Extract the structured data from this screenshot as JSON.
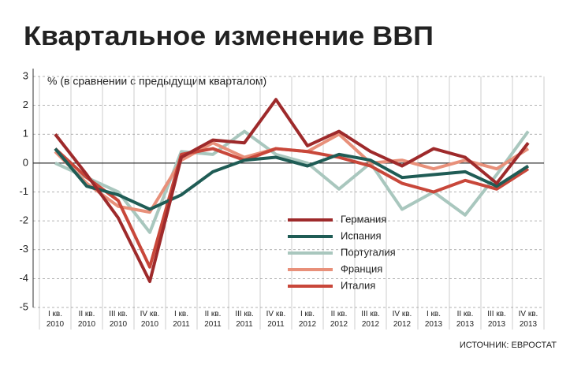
{
  "chart_data": {
    "type": "line",
    "title": "Квартальное изменение ВВП",
    "subtitle": "% (в сравнении с предыдущим кварталом)",
    "source": "ИСТОЧНИК: ЕВРОСТАТ",
    "categories": [
      [
        "I кв.",
        "2010"
      ],
      [
        "II кв.",
        "2010"
      ],
      [
        "III кв.",
        "2010"
      ],
      [
        "IV кв.",
        "2010"
      ],
      [
        "I кв.",
        "2011"
      ],
      [
        "II кв.",
        "2011"
      ],
      [
        "III кв.",
        "2011"
      ],
      [
        "IV кв.",
        "2011"
      ],
      [
        "I кв.",
        "2012"
      ],
      [
        "II кв.",
        "2012"
      ],
      [
        "III кв.",
        "2012"
      ],
      [
        "IV кв.",
        "2012"
      ],
      [
        "I кв.",
        "2013"
      ],
      [
        "II кв.",
        "2013"
      ],
      [
        "III кв.",
        "2013"
      ],
      [
        "IV кв.",
        "2013"
      ]
    ],
    "series": [
      {
        "name": "Германия",
        "color": "#9e2a2b",
        "values": [
          1.0,
          -0.4,
          -1.9,
          -4.1,
          0.2,
          0.8,
          0.7,
          2.2,
          0.6,
          1.1,
          0.4,
          -0.1,
          0.5,
          0.2,
          -0.7,
          0.7
        ]
      },
      {
        "name": "Испания",
        "color": "#1f5c55",
        "values": [
          0.5,
          -0.8,
          -1.1,
          -1.6,
          -1.1,
          -0.3,
          0.1,
          0.2,
          -0.1,
          0.3,
          0.1,
          -0.5,
          -0.4,
          -0.3,
          -0.8,
          -0.1
        ]
      },
      {
        "name": "Португалия",
        "color": "#a9c7be",
        "values": [
          0.0,
          -0.5,
          -1.0,
          -2.4,
          0.4,
          0.3,
          1.1,
          0.3,
          0.0,
          -0.9,
          0.0,
          -1.6,
          -1.0,
          -1.8,
          -0.4,
          1.1
        ]
      },
      {
        "name": "Франция",
        "color": "#e8907a",
        "values": [
          0.4,
          -0.7,
          -1.5,
          -1.7,
          0.1,
          0.7,
          0.2,
          0.5,
          0.4,
          1.0,
          0.0,
          0.1,
          -0.2,
          0.1,
          -0.2,
          0.5
        ]
      },
      {
        "name": "Италия",
        "color": "#c8473a",
        "values": [
          0.5,
          -0.5,
          -1.3,
          -3.6,
          0.3,
          0.5,
          0.1,
          0.5,
          0.4,
          0.2,
          -0.1,
          -0.7,
          -1.0,
          -0.6,
          -0.9,
          -0.2
        ]
      }
    ],
    "ylim": [
      -5,
      3
    ],
    "yticks": [
      -5,
      -4,
      -3,
      -2,
      -1,
      0,
      1,
      2,
      3
    ],
    "grid": true
  }
}
